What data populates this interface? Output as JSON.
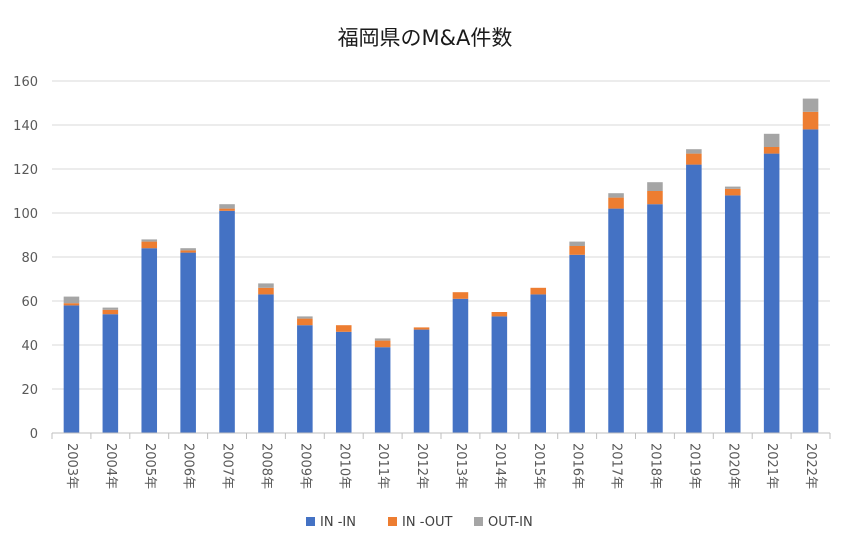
{
  "chart_data": {
    "type": "bar",
    "stacked": true,
    "title": "福岡県のM&A件数",
    "xlabel": "",
    "ylabel": "",
    "ylim": [
      0,
      160
    ],
    "yticks": [
      0,
      20,
      40,
      60,
      80,
      100,
      120,
      140,
      160
    ],
    "grid": true,
    "legend_position": "bottom",
    "categories": [
      "2003年",
      "2004年",
      "2005年",
      "2006年",
      "2007年",
      "2008年",
      "2009年",
      "2010年",
      "2011年",
      "2012年",
      "2013年",
      "2014年",
      "2015年",
      "2016年",
      "2017年",
      "2018年",
      "2019年",
      "2020年",
      "2021年",
      "2022年"
    ],
    "series": [
      {
        "name": "IN -IN",
        "color": "#4472C4",
        "values": [
          58,
          54,
          84,
          82,
          101,
          63,
          49,
          46,
          39,
          47,
          61,
          53,
          63,
          81,
          102,
          104,
          122,
          108,
          127,
          138
        ]
      },
      {
        "name": "IN -OUT",
        "color": "#ED7D31",
        "values": [
          1,
          2,
          3,
          1,
          1,
          3,
          3,
          3,
          3,
          1,
          3,
          2,
          3,
          4,
          5,
          6,
          5,
          3,
          3,
          8
        ]
      },
      {
        "name": "OUT-IN",
        "color": "#A5A5A5",
        "values": [
          3,
          1,
          1,
          1,
          2,
          2,
          1,
          0,
          1,
          0,
          0,
          0,
          0,
          2,
          2,
          4,
          2,
          1,
          6,
          6
        ]
      }
    ]
  }
}
